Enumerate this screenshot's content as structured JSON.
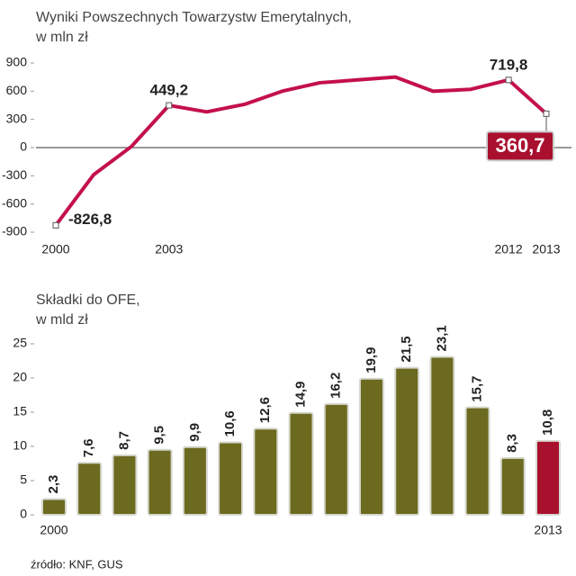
{
  "chart_data": [
    {
      "type": "line",
      "title": "Wyniki Powszechnych Towarzystw Emerytalnych,",
      "subtitle": "w mln zł",
      "categories": [
        "2000",
        null,
        null,
        "2003",
        null,
        null,
        null,
        null,
        null,
        null,
        null,
        null,
        "2012",
        "2013"
      ],
      "values": [
        -826.8,
        -290,
        10,
        449.2,
        380,
        460,
        600,
        690,
        720,
        750,
        600,
        620,
        719.8,
        360.7
      ],
      "value_labels": [
        "-826,8",
        null,
        null,
        "449,2",
        null,
        null,
        null,
        null,
        null,
        null,
        null,
        null,
        "719,8",
        "360,7"
      ],
      "color": "#c4104a",
      "ylim": [
        -900,
        900
      ],
      "yticks": [
        900,
        600,
        300,
        0,
        -300,
        -600,
        -900
      ],
      "grid": false
    },
    {
      "type": "bar",
      "title": "Składki do OFE,",
      "subtitle": "w mld zł",
      "categories": [
        "2000",
        null,
        null,
        null,
        null,
        null,
        null,
        null,
        null,
        null,
        null,
        null,
        null,
        null,
        "2013"
      ],
      "values": [
        2.3,
        7.6,
        8.7,
        9.5,
        9.9,
        10.6,
        12.6,
        14.9,
        16.2,
        19.9,
        21.5,
        23.1,
        15.7,
        8.3,
        10.8
      ],
      "value_labels": [
        "2,3",
        "7,6",
        "8,7",
        "9,5",
        "9,9",
        "10,6",
        "12,6",
        "14,9",
        "16,2",
        "19,9",
        "21,5",
        "23,1",
        "15,7",
        "8,3",
        "10,8"
      ],
      "colors": [
        "#6b6a1f",
        "#6b6a1f",
        "#6b6a1f",
        "#6b6a1f",
        "#6b6a1f",
        "#6b6a1f",
        "#6b6a1f",
        "#6b6a1f",
        "#6b6a1f",
        "#6b6a1f",
        "#6b6a1f",
        "#6b6a1f",
        "#6b6a1f",
        "#6b6a1f",
        "#a8102e"
      ],
      "ylim": [
        0,
        25
      ],
      "yticks": [
        0,
        5,
        10,
        15,
        20,
        25
      ],
      "grid": false
    }
  ],
  "source": "źródło: KNF, GUS"
}
